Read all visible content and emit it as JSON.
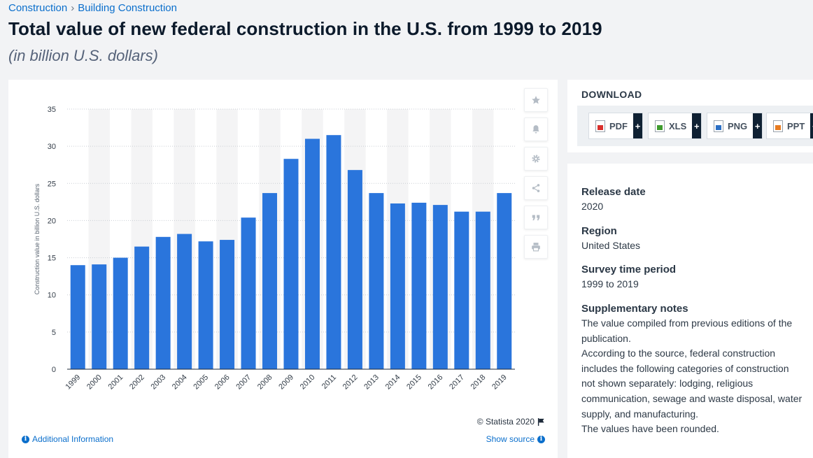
{
  "breadcrumb": {
    "items": [
      "Construction",
      "Building Construction"
    ],
    "separator": "›"
  },
  "title": "Total value of new federal construction in the U.S. from 1999 to 2019",
  "subtitle": "(in billion U.S. dollars)",
  "chart_data": {
    "type": "bar",
    "categories": [
      "1999",
      "2000",
      "2001",
      "2002",
      "2003",
      "2004",
      "2005",
      "2006",
      "2007",
      "2008",
      "2009",
      "2010",
      "2011",
      "2012",
      "2013",
      "2014",
      "2015",
      "2016",
      "2017",
      "2018",
      "2019"
    ],
    "values": [
      14.0,
      14.1,
      15.0,
      16.5,
      17.8,
      18.2,
      17.2,
      17.4,
      20.4,
      23.7,
      28.3,
      31.0,
      31.5,
      26.8,
      23.7,
      22.3,
      22.4,
      22.1,
      21.2,
      21.2,
      23.7
    ],
    "title": "",
    "xlabel": "",
    "ylabel": "Construction value in billion U.S. dollars",
    "ylim": [
      0,
      35
    ],
    "yticks": [
      0,
      5,
      10,
      15,
      20,
      25,
      30,
      35
    ],
    "bar_color": "#2a75dc",
    "band_color": "#f4f4f5",
    "grid": true
  },
  "credit": "© Statista 2020",
  "additional_info": "Additional Information",
  "show_source": "Show source",
  "download": {
    "title": "DOWNLOAD",
    "buttons": [
      {
        "label": "PDF",
        "color": "#d9302c"
      },
      {
        "label": "XLS",
        "color": "#3f9b2e"
      },
      {
        "label": "PNG",
        "color": "#2b6fc4"
      },
      {
        "label": "PPT",
        "color": "#e77b22"
      }
    ],
    "plus": "+"
  },
  "details": [
    {
      "label": "Release date",
      "value": "2020"
    },
    {
      "label": "Region",
      "value": "United States"
    },
    {
      "label": "Survey time period",
      "value": "1999 to 2019"
    },
    {
      "label": "Supplementary notes",
      "lines": [
        "The value compiled from previous editions of the",
        "publication.",
        "According to the source, federal construction",
        "includes the following categories of construction",
        "not shown separately: lodging, religious",
        "communication, sewage and waste disposal, water",
        "supply, and manufacturing.",
        "The values have been rounded."
      ]
    }
  ]
}
